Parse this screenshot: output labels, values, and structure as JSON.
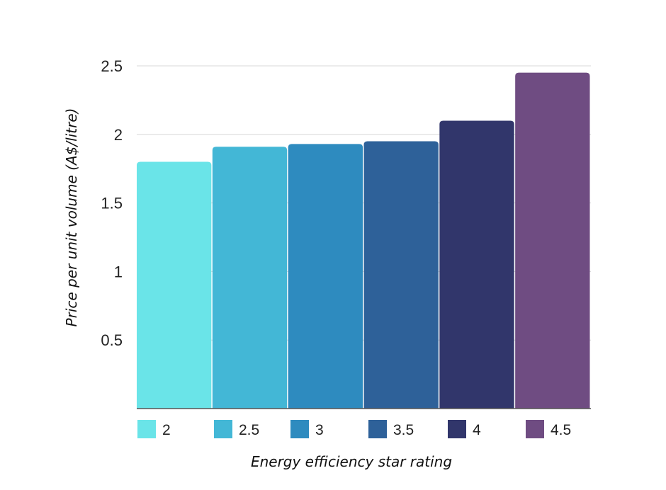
{
  "chart_data": {
    "type": "bar",
    "title": "",
    "xlabel": "Energy efficiency star rating",
    "ylabel": "Price per unit volume (A$/litre)",
    "ylim": [
      0,
      2.5
    ],
    "yticks": [
      "0.5",
      "1",
      "1.5",
      "2",
      "2.5"
    ],
    "grid": true,
    "legend_placement": "bottom",
    "categories": [
      "2",
      "2.5",
      "3",
      "3.5",
      "4",
      "4.5"
    ],
    "values": [
      1.8,
      1.91,
      1.93,
      1.95,
      2.1,
      2.45
    ],
    "colors": [
      "#6ae4e8",
      "#43b7d6",
      "#2e8bbf",
      "#2e6199",
      "#31366b",
      "#6f4c82"
    ]
  }
}
